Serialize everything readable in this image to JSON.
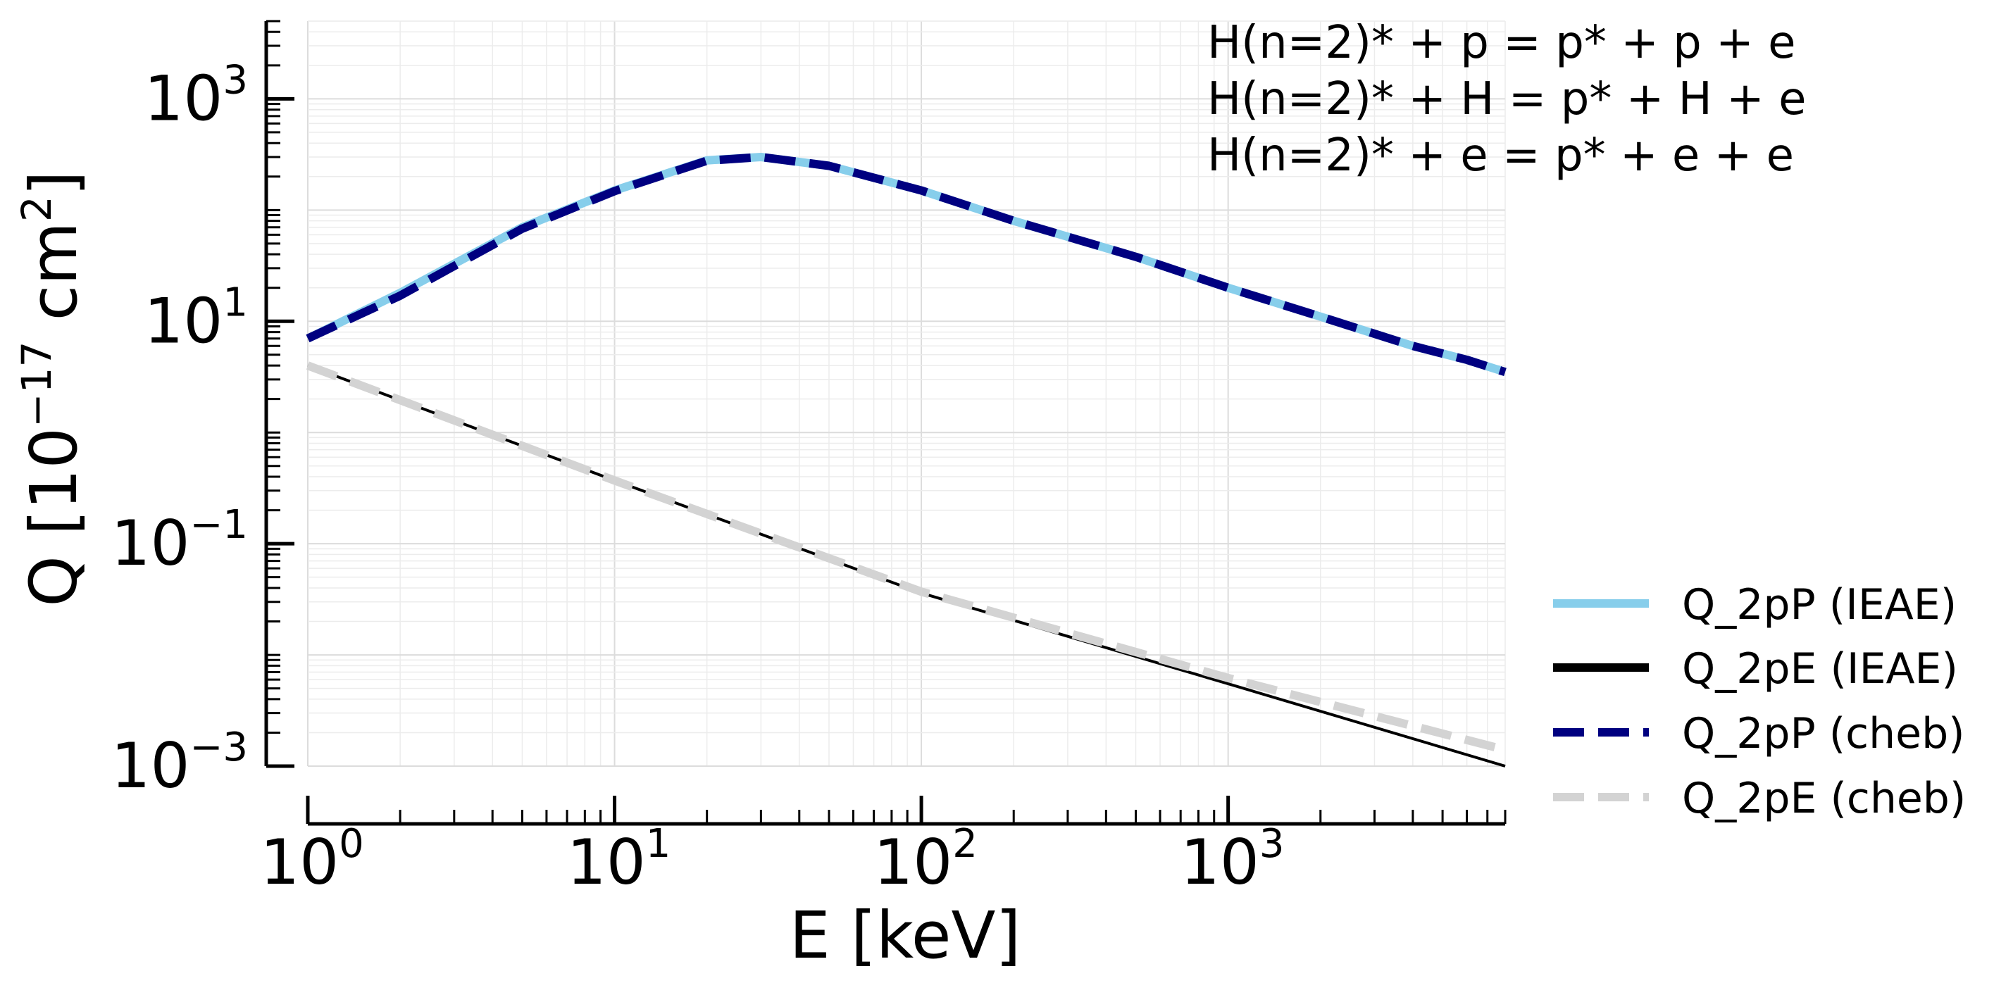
{
  "chart_data": {
    "type": "line",
    "title": "",
    "xlabel": "E [keV]",
    "ylabel_main": "Q [10",
    "ylabel_exp": "−17",
    "ylabel_unit": " cm",
    "ylabel_unit_exp": "2",
    "ylabel_close": "]",
    "xscale": "log",
    "yscale": "log",
    "xlim": [
      1,
      8000
    ],
    "ylim": [
      0.001,
      5000
    ],
    "grid": true,
    "x_ticks": [
      {
        "value": 1,
        "base": "10",
        "exp": "0"
      },
      {
        "value": 10,
        "base": "10",
        "exp": "1"
      },
      {
        "value": 100,
        "base": "10",
        "exp": "2"
      },
      {
        "value": 1000,
        "base": "10",
        "exp": "3"
      }
    ],
    "y_ticks": [
      {
        "value": 0.001,
        "base": "10",
        "exp": "−3"
      },
      {
        "value": 0.1,
        "base": "10",
        "exp": "−1"
      },
      {
        "value": 10,
        "base": "10",
        "exp": "1"
      },
      {
        "value": 1000,
        "base": "10",
        "exp": "3"
      }
    ],
    "annotations": [
      "H(n=2)* + p = p* + p + e",
      "H(n=2)* + H = p* + H + e",
      "H(n=2)* + e = p* + e + e"
    ],
    "legend_position": "bottom-right-outside",
    "series": [
      {
        "name": "Q_2pP (IEAE)",
        "color": "#87ceeb",
        "style": "solid",
        "x": [
          1,
          2,
          5,
          10,
          20,
          30,
          50,
          100,
          200,
          500,
          1000,
          2000,
          4000,
          6000,
          8000
        ],
        "y": [
          7.0,
          18,
          70,
          150,
          280,
          300,
          250,
          150,
          80,
          38,
          20,
          11,
          6.0,
          4.5,
          3.5
        ]
      },
      {
        "name": "Q_2pE (IEAE)",
        "color": "#000000",
        "style": "solid",
        "x": [
          1,
          10,
          100,
          1000,
          8000
        ],
        "y": [
          4.0,
          0.37,
          0.036,
          0.0055,
          0.001
        ]
      },
      {
        "name": "Q_2pP (cheb)",
        "color": "#000080",
        "style": "dashed",
        "x": [
          1,
          2,
          5,
          10,
          20,
          30,
          50,
          100,
          200,
          500,
          1000,
          2000,
          4000,
          6000,
          8000
        ],
        "y": [
          7.0,
          17,
          68,
          148,
          278,
          300,
          250,
          150,
          80,
          38,
          20,
          11,
          6.0,
          4.5,
          3.5
        ]
      },
      {
        "name": "Q_2pE (cheb)",
        "color": "#d3d3d3",
        "style": "dashed",
        "x": [
          1,
          10,
          100,
          1000,
          8000
        ],
        "y": [
          4.0,
          0.37,
          0.037,
          0.0062,
          0.0014
        ]
      }
    ]
  }
}
